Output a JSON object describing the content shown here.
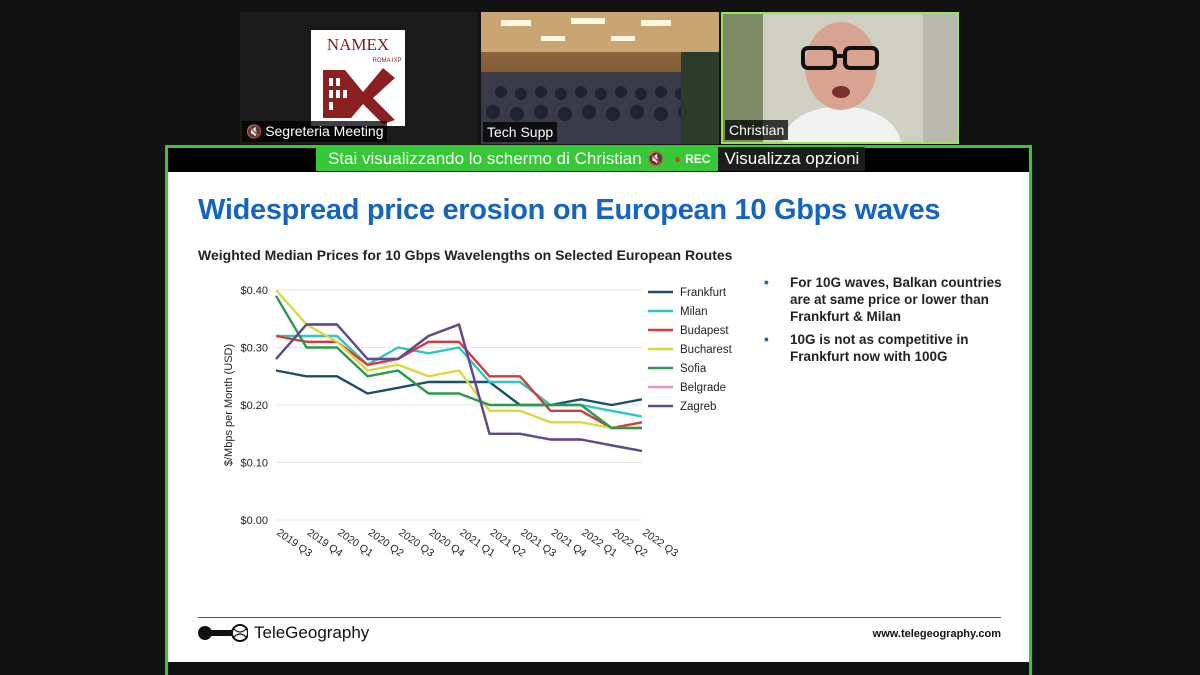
{
  "participants": [
    {
      "name": "Segreteria Meeting",
      "muted": true,
      "logo_text": "NAMEX",
      "logo_subtext": "ROMA IXP"
    },
    {
      "name": "Tech Supp",
      "muted": false
    },
    {
      "name": "Christian",
      "muted": false,
      "active_speaker": true
    }
  ],
  "share_banner": {
    "message": "Stai visualizzando lo schermo di Christian",
    "rec_label": "REC",
    "options_label": "Visualizza opzioni"
  },
  "slide": {
    "title": "Widespread price erosion on European 10 Gbps waves",
    "chart_subtitle": "Weighted Median Prices for 10 Gbps Wavelengths on Selected European Routes",
    "bullets": [
      "For 10G waves, Balkan countries are at same price or lower than Frankfurt & Milan",
      "10G is not as competitive in Frankfurt now with 100G"
    ],
    "footer_brand": "TeleGeography",
    "footer_url": "www.telegeography.com"
  },
  "colors": {
    "accent_green": "#37c837",
    "title_blue": "#1565c0"
  },
  "chart_data": {
    "type": "line",
    "ylabel": "$/Mbps per Month (USD)",
    "ylim": [
      0,
      0.4
    ],
    "yticks": [
      "$0.00",
      "$0.10",
      "$0.20",
      "$0.30",
      "$0.40"
    ],
    "ytick_values": [
      0,
      0.1,
      0.2,
      0.3,
      0.4
    ],
    "legend_position": "right",
    "x": [
      "2019 Q3",
      "2019 Q4",
      "2020 Q1",
      "2020 Q2",
      "2020 Q3",
      "2020 Q4",
      "2021 Q1",
      "2021 Q2",
      "2021 Q3",
      "2021 Q4",
      "2022 Q1",
      "2022 Q2",
      "2022 Q3"
    ],
    "series": [
      {
        "name": "Frankfurt",
        "color": "#1b4f6b",
        "values": [
          0.26,
          0.25,
          0.25,
          0.22,
          0.23,
          0.24,
          0.24,
          0.24,
          0.2,
          0.2,
          0.21,
          0.2,
          0.21
        ]
      },
      {
        "name": "Milan",
        "color": "#2ec7c0",
        "values": [
          0.32,
          0.32,
          0.32,
          0.27,
          0.3,
          0.29,
          0.3,
          0.24,
          0.24,
          0.2,
          0.2,
          0.19,
          0.18
        ]
      },
      {
        "name": "Budapest",
        "color": "#d63a3a",
        "values": [
          0.32,
          0.31,
          0.31,
          0.27,
          0.28,
          0.31,
          0.31,
          0.25,
          0.25,
          0.19,
          0.19,
          0.16,
          0.17
        ]
      },
      {
        "name": "Bucharest",
        "color": "#d9d93a",
        "values": [
          0.4,
          0.34,
          0.31,
          0.26,
          0.27,
          0.25,
          0.26,
          0.19,
          0.19,
          0.17,
          0.17,
          0.16,
          0.16
        ]
      },
      {
        "name": "Sofia",
        "color": "#2a9a4a",
        "values": [
          0.39,
          0.3,
          0.3,
          0.25,
          0.26,
          0.22,
          0.22,
          0.2,
          0.2,
          0.2,
          0.2,
          0.16,
          0.16
        ]
      },
      {
        "name": "Belgrade",
        "color": "#e58ee0",
        "values": [
          0.28,
          0.34,
          0.34,
          0.28,
          0.28,
          0.32,
          0.34,
          0.15,
          0.15,
          0.14,
          0.14,
          0.13,
          0.12
        ]
      },
      {
        "name": "Zagreb",
        "color": "#5b4a8e",
        "values": [
          0.28,
          0.34,
          0.34,
          0.28,
          0.28,
          0.32,
          0.34,
          0.15,
          0.15,
          0.14,
          0.14,
          0.13,
          0.12
        ]
      }
    ]
  }
}
